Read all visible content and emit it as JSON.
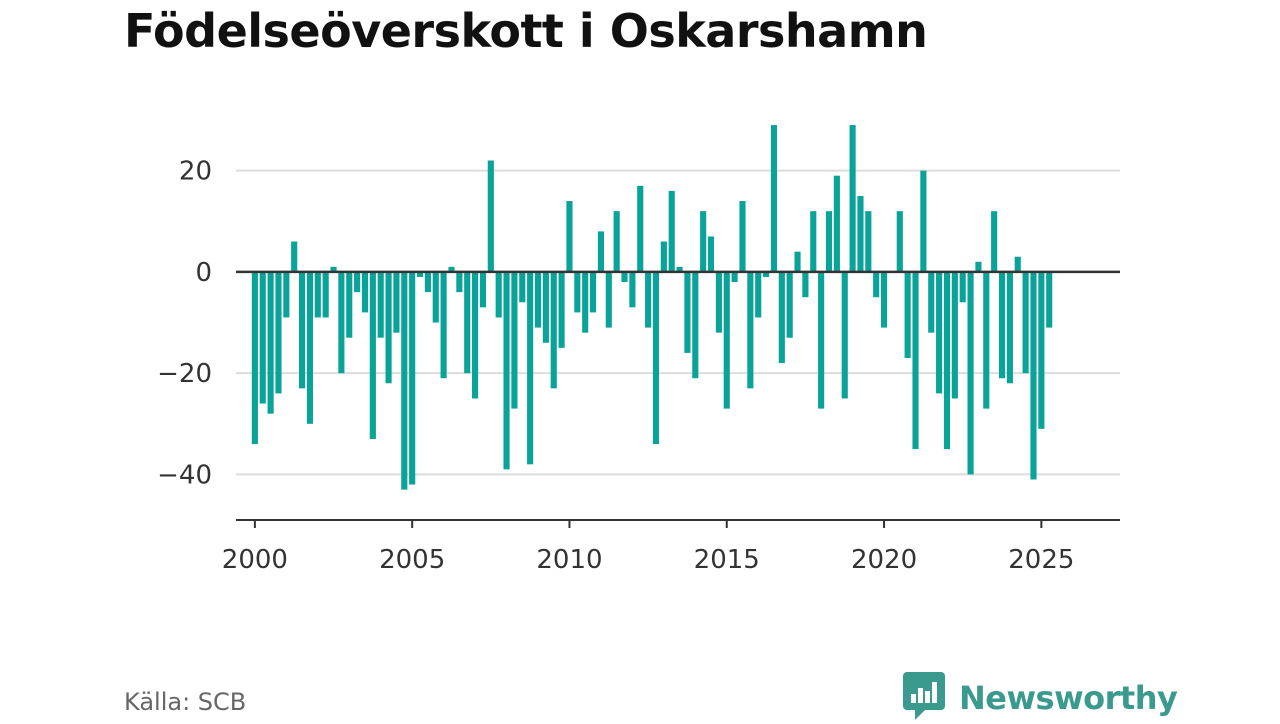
{
  "title": "Födelseöverskott i Oskarshamn",
  "source": "Källa: SCB",
  "brand": {
    "name": "Newsworthy",
    "color": "#3a9a8e",
    "icon": "newsworthy-logo-icon"
  },
  "colors": {
    "bar": "#0aa39a",
    "zero_line": "#333333",
    "grid": "#dddddd",
    "axis": "#333333",
    "title": "#111111",
    "text": "#333333"
  },
  "chart_data": {
    "type": "bar",
    "title": "Födelseöverskott i Oskarshamn",
    "xlabel": "",
    "ylabel": "",
    "x_is": "year, quarterly periods from 2000 Q1 to 2025 Q2",
    "xlim": [
      1999.4,
      2027.5
    ],
    "ylim": [
      -49,
      30
    ],
    "xticks": [
      2000,
      2005,
      2010,
      2015,
      2020,
      2025
    ],
    "yticks": [
      -40,
      -20,
      0,
      20
    ],
    "ytick_labels": [
      "−40",
      "−20",
      "0",
      "20"
    ],
    "grid": true,
    "legend": "none",
    "x": [
      2000.0,
      2000.25,
      2000.5,
      2000.75,
      2001.0,
      2001.25,
      2001.5,
      2001.75,
      2002.0,
      2002.25,
      2002.5,
      2002.75,
      2003.0,
      2003.25,
      2003.5,
      2003.75,
      2004.0,
      2004.25,
      2004.5,
      2004.75,
      2005.0,
      2005.25,
      2005.5,
      2005.75,
      2006.0,
      2006.25,
      2006.5,
      2006.75,
      2007.0,
      2007.25,
      2007.5,
      2007.75,
      2008.0,
      2008.25,
      2008.5,
      2008.75,
      2009.0,
      2009.25,
      2009.5,
      2009.75,
      2010.0,
      2010.25,
      2010.5,
      2010.75,
      2011.0,
      2011.25,
      2011.5,
      2011.75,
      2012.0,
      2012.25,
      2012.5,
      2012.75,
      2013.0,
      2013.25,
      2013.5,
      2013.75,
      2014.0,
      2014.25,
      2014.5,
      2014.75,
      2015.0,
      2015.25,
      2015.5,
      2015.75,
      2016.0,
      2016.25,
      2016.5,
      2016.75,
      2017.0,
      2017.25,
      2017.5,
      2017.75,
      2018.0,
      2018.25,
      2018.5,
      2018.75,
      2019.0,
      2019.25,
      2019.5,
      2019.75,
      2020.0,
      2020.25,
      2020.5,
      2020.75,
      2021.0,
      2021.25,
      2021.5,
      2021.75,
      2022.0,
      2022.25,
      2022.5,
      2022.75,
      2023.0,
      2023.25,
      2023.5,
      2023.75,
      2024.0,
      2024.25,
      2024.5,
      2024.75,
      2025.0,
      2025.25
    ],
    "values": [
      -34,
      -26,
      -28,
      -24,
      -9,
      6,
      -23,
      -30,
      -9,
      -9,
      1,
      -20,
      -13,
      -4,
      -8,
      -33,
      -13,
      -22,
      -12,
      -43,
      -42,
      -1,
      -4,
      -10,
      -21,
      1,
      -4,
      -20,
      -25,
      -7,
      22,
      -9,
      -39,
      -27,
      -6,
      -38,
      -11,
      -14,
      -23,
      -15,
      14,
      -8,
      -12,
      -8,
      8,
      -11,
      12,
      -2,
      -7,
      17,
      -11,
      -34,
      6,
      16,
      1,
      -16,
      -21,
      12,
      7,
      -12,
      -27,
      -2,
      14,
      -23,
      -9,
      -1,
      29,
      -18,
      -13,
      4,
      -5,
      12,
      -27,
      12,
      19,
      -25,
      29,
      15,
      12,
      -5,
      -11,
      0,
      12,
      -17,
      -35,
      20,
      -12,
      -24,
      -35,
      -25,
      -6,
      -40,
      2,
      -27,
      12,
      -21,
      -22,
      3,
      -20,
      -41,
      -31,
      -11
    ]
  }
}
